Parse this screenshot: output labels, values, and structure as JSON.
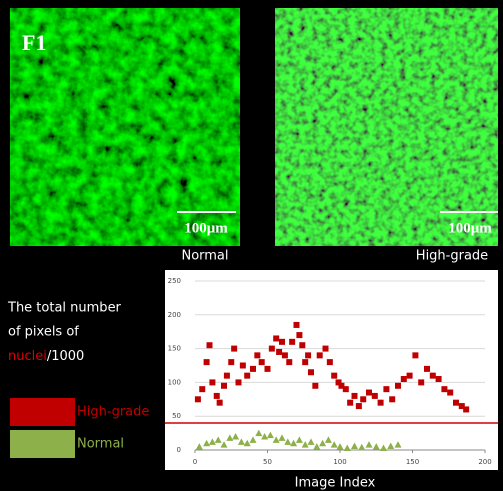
{
  "figure_label": "F1",
  "images": [
    {
      "caption": "Normal",
      "scale_bar": "100μm"
    },
    {
      "caption": "High-grade",
      "scale_bar": "100μm"
    }
  ],
  "chart_data": {
    "type": "scatter",
    "y_label": [
      "The total number",
      "of pixels of",
      "nuclei",
      "/1000"
    ],
    "x_label": "Image Index",
    "xlim": [
      0,
      200
    ],
    "xticks": [
      0,
      50,
      100,
      150,
      200
    ],
    "ylim": [
      0,
      250
    ],
    "yticks": [
      0,
      50,
      100,
      150,
      200,
      250
    ],
    "grid": true,
    "threshold": {
      "value": 40,
      "color": "#d00000"
    },
    "series": [
      {
        "name": "High-grade",
        "color": "#c00000",
        "marker": "square",
        "x": [
          2,
          5,
          8,
          10,
          12,
          15,
          17,
          20,
          22,
          25,
          27,
          30,
          33,
          36,
          40,
          43,
          46,
          50,
          53,
          56,
          58,
          60,
          62,
          65,
          67,
          70,
          72,
          74,
          76,
          78,
          80,
          83,
          86,
          90,
          93,
          96,
          99,
          101,
          104,
          107,
          110,
          113,
          116,
          120,
          124,
          128,
          132,
          136,
          140,
          144,
          148,
          152,
          156,
          160,
          164,
          168,
          172,
          176,
          180,
          184,
          187
        ],
        "values": [
          75,
          90,
          130,
          155,
          100,
          80,
          70,
          95,
          110,
          130,
          150,
          100,
          125,
          110,
          120,
          140,
          130,
          120,
          150,
          165,
          145,
          160,
          140,
          130,
          160,
          185,
          170,
          155,
          130,
          140,
          115,
          95,
          140,
          150,
          130,
          110,
          100,
          95,
          90,
          70,
          80,
          65,
          75,
          85,
          80,
          70,
          90,
          75,
          95,
          105,
          110,
          140,
          100,
          120,
          110,
          105,
          90,
          85,
          70,
          65,
          60
        ]
      },
      {
        "name": "Normal",
        "color": "#8db04a",
        "marker": "triangle",
        "x": [
          3,
          8,
          12,
          16,
          20,
          24,
          28,
          32,
          36,
          40,
          44,
          48,
          52,
          56,
          60,
          64,
          68,
          72,
          76,
          80,
          84,
          88,
          92,
          96,
          100,
          105,
          110,
          115,
          120,
          125,
          130,
          135,
          140
        ],
        "values": [
          5,
          10,
          12,
          15,
          8,
          18,
          20,
          12,
          10,
          15,
          25,
          20,
          22,
          15,
          18,
          12,
          10,
          15,
          8,
          12,
          5,
          10,
          15,
          8,
          5,
          3,
          6,
          4,
          8,
          5,
          3,
          6,
          8
        ]
      }
    ]
  }
}
